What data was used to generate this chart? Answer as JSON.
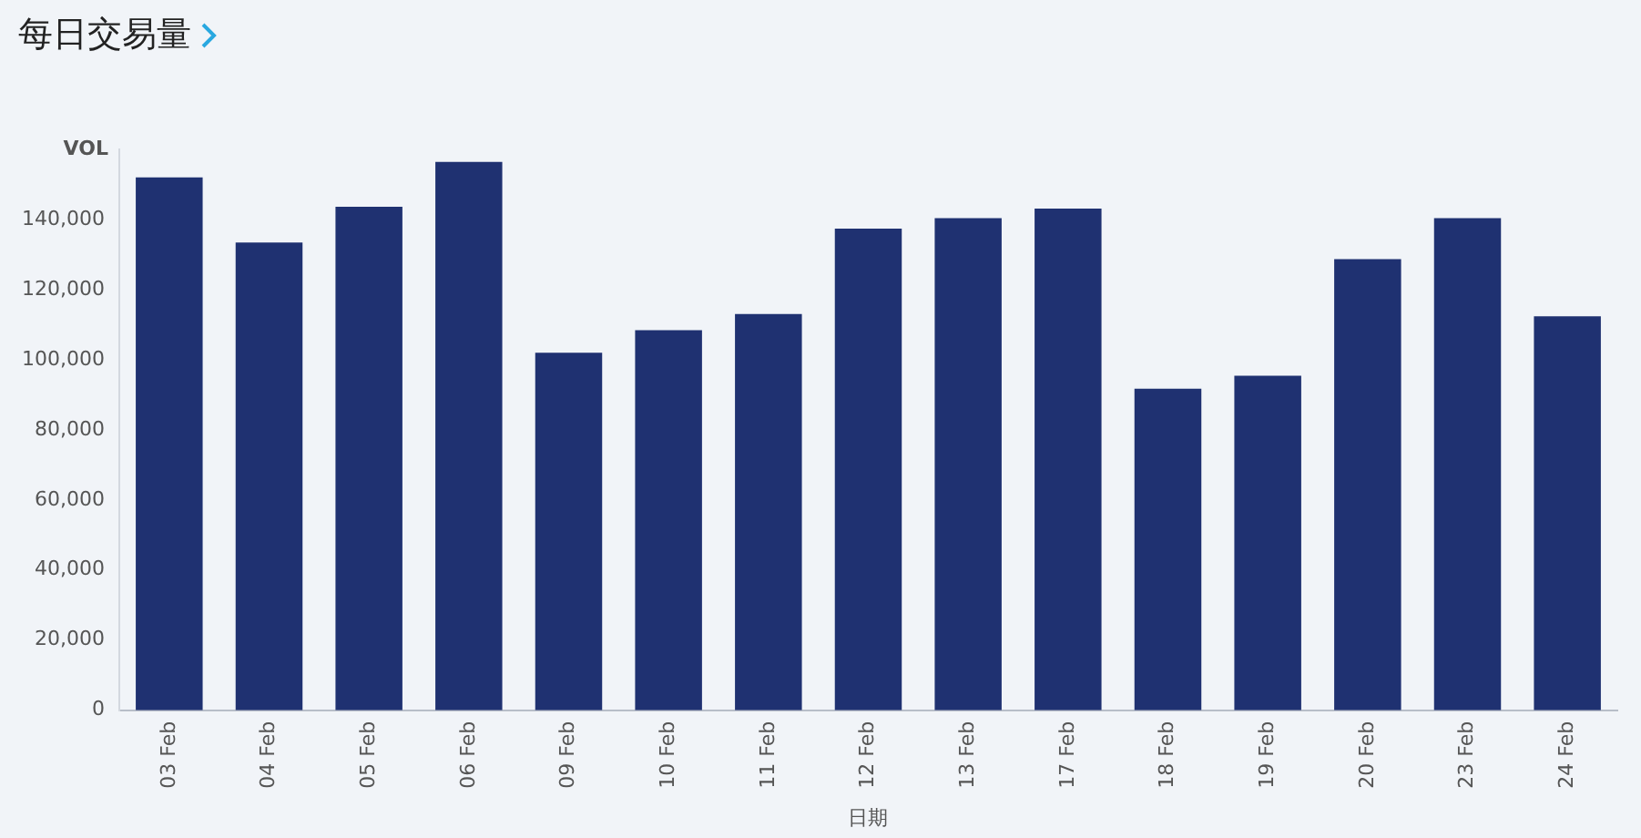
{
  "chart_data": {
    "type": "bar",
    "title": "每日交易量",
    "xlabel": "日期",
    "ylabel": "VOL",
    "categories": [
      "03 Feb",
      "04 Feb",
      "05 Feb",
      "06 Feb",
      "09 Feb",
      "10 Feb",
      "11 Feb",
      "12 Feb",
      "13 Feb",
      "17 Feb",
      "18 Feb",
      "19 Feb",
      "20 Feb",
      "23 Feb",
      "24 Feb"
    ],
    "values": [
      152000,
      133400,
      143600,
      156400,
      102000,
      108400,
      113000,
      137400,
      140400,
      143100,
      91700,
      95400,
      128700,
      140400,
      112400
    ],
    "color": "#1f3171",
    "ylim": [
      0,
      160000
    ],
    "yticks": [
      0,
      {
        "value": 20000,
        "label": "20,000"
      },
      {
        "value": 40000,
        "label": "40,000"
      },
      {
        "value": 60000,
        "label": "60,000"
      },
      {
        "value": 80000,
        "label": "80,000"
      },
      {
        "value": 100000,
        "label": "100,000"
      },
      {
        "value": 120000,
        "label": "120,000"
      },
      {
        "value": 140000,
        "label": "140,000"
      }
    ],
    "grid": false,
    "legend": false
  }
}
